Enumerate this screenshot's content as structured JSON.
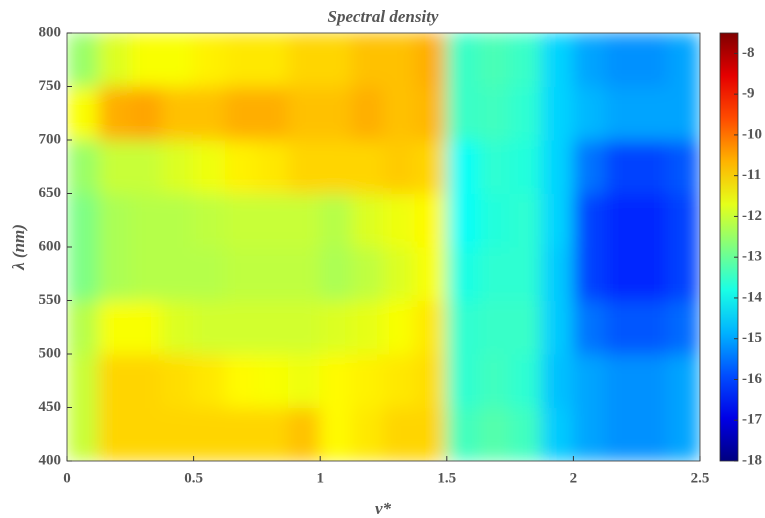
{
  "chart_data": {
    "type": "heatmap",
    "title": "Spectral density",
    "xlabel": "ν*",
    "ylabel": "λ (nm)",
    "x": [
      0.0625,
      0.1875,
      0.3125,
      0.4375,
      0.5625,
      0.6875,
      0.8125,
      0.9375,
      1.0625,
      1.1875,
      1.3125,
      1.4375,
      1.5625,
      1.6875,
      1.8125,
      1.9375,
      2.0625,
      2.1875,
      2.3125,
      2.4375
    ],
    "y": [
      425,
      475,
      525,
      575,
      625,
      675,
      725,
      775
    ],
    "z": [
      [
        -12,
        -11,
        -11,
        -11,
        -11,
        -11,
        -11,
        -10.8,
        -11.4,
        -11.2,
        -11,
        -11,
        -13.4,
        -13.2,
        -13.4,
        -14.6,
        -15,
        -15.2,
        -15.2,
        -15
      ],
      [
        -12,
        -11,
        -11,
        -11.1,
        -11.2,
        -11.4,
        -11.5,
        -11.6,
        -11.4,
        -11.3,
        -11.2,
        -11.1,
        -13.6,
        -13.4,
        -13.6,
        -14.7,
        -15,
        -15.2,
        -15.2,
        -15
      ],
      [
        -12.2,
        -11.5,
        -11.5,
        -11.8,
        -11.9,
        -11.9,
        -11.9,
        -11.9,
        -11.8,
        -11.7,
        -11.5,
        -11.2,
        -13.6,
        -13.5,
        -13.5,
        -14.6,
        -15.5,
        -15.8,
        -15.8,
        -15.6
      ],
      [
        -12.8,
        -12.3,
        -12.2,
        -12.2,
        -12.2,
        -12.1,
        -12.1,
        -12.1,
        -12.3,
        -12.1,
        -11.8,
        -11.5,
        -13.8,
        -13.6,
        -13.6,
        -14.6,
        -16,
        -16.3,
        -16.3,
        -16
      ],
      [
        -12.8,
        -12.3,
        -12.2,
        -12.2,
        -12.1,
        -12,
        -12,
        -12,
        -12.2,
        -11.8,
        -11.6,
        -11.4,
        -14,
        -13.7,
        -13.6,
        -14.5,
        -16,
        -16.3,
        -16.3,
        -16
      ],
      [
        -12.5,
        -12,
        -12,
        -11.8,
        -11.6,
        -11.3,
        -11.2,
        -11,
        -11,
        -11,
        -10.9,
        -11,
        -14,
        -13.6,
        -13.7,
        -14.5,
        -15.5,
        -16,
        -16,
        -15.8
      ],
      [
        -11.5,
        -10.6,
        -10.5,
        -10.8,
        -10.8,
        -10.6,
        -10.6,
        -10.8,
        -10.8,
        -10.6,
        -10.8,
        -10.7,
        -13.5,
        -13.4,
        -13.6,
        -14.5,
        -14.8,
        -15,
        -15,
        -15
      ],
      [
        -12.5,
        -11.8,
        -11.5,
        -11.5,
        -11.3,
        -11.2,
        -11.2,
        -11,
        -11,
        -10.8,
        -10.8,
        -10.6,
        -13.5,
        -13.3,
        -13.5,
        -14.5,
        -15,
        -15.2,
        -15.2,
        -15
      ]
    ],
    "xlim": [
      0,
      2.5
    ],
    "xticks": [
      0,
      0.5,
      1,
      1.5,
      2,
      2.5
    ],
    "ylim": [
      400,
      800
    ],
    "yticks": [
      400,
      450,
      500,
      550,
      600,
      650,
      700,
      750,
      800
    ],
    "clim": [
      -18,
      -7.5
    ],
    "cticks": [
      -8,
      -9,
      -10,
      -11,
      -12,
      -13,
      -14,
      -15,
      -16,
      -17,
      -18
    ],
    "colormap": "jet"
  }
}
